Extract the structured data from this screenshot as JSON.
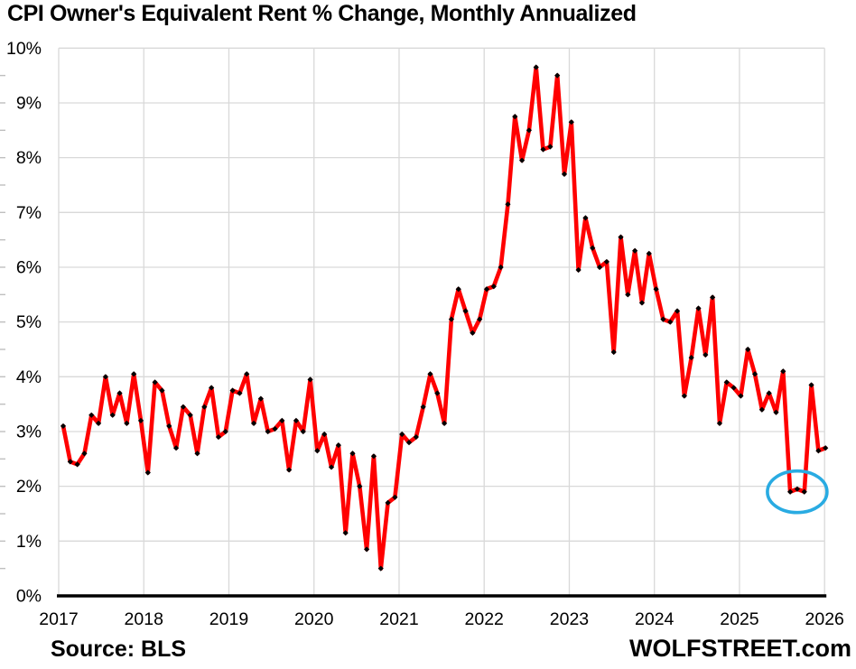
{
  "footer": {
    "source": "Source: BLS",
    "brand": "WOLFSTREET.com"
  },
  "chart_data": {
    "type": "line",
    "title": "CPI Owner's Equivalent Rent % Change, Monthly Annualized",
    "xlabel": "",
    "ylabel": "",
    "ylim": [
      0,
      10
    ],
    "y_ticks": [
      0,
      1,
      2,
      3,
      4,
      5,
      6,
      7,
      8,
      9,
      10
    ],
    "y_tick_suffix": "%",
    "y_minor_tick_step": 0.5,
    "x_tick_labels": [
      "2017",
      "2018",
      "2019",
      "2020",
      "2021",
      "2022",
      "2023",
      "2024",
      "2025",
      "2026"
    ],
    "grid": "on",
    "legend": "none",
    "background_color": "#ffffff",
    "text_color": "#000000",
    "grid_color": "#d9d9d9",
    "line_color": "#ff0000",
    "marker_color": "#000000",
    "series": [
      {
        "name": "Owner's equivalent rent, month-to-month % change annualized",
        "start": "2017-01",
        "step": "1 month",
        "end": "2026-01",
        "values": [
          3.1,
          2.45,
          2.4,
          2.6,
          3.3,
          3.15,
          4.0,
          3.3,
          3.7,
          3.15,
          4.05,
          3.2,
          2.25,
          3.9,
          3.75,
          3.1,
          2.7,
          3.45,
          3.3,
          2.6,
          3.45,
          3.8,
          2.9,
          3.0,
          3.75,
          3.7,
          4.05,
          3.15,
          3.6,
          3.0,
          3.05,
          3.2,
          2.3,
          3.2,
          3.0,
          3.95,
          2.65,
          2.95,
          2.35,
          2.75,
          1.15,
          2.6,
          2.0,
          0.85,
          2.55,
          0.5,
          1.7,
          1.8,
          2.95,
          2.8,
          2.9,
          3.45,
          4.05,
          3.7,
          3.15,
          5.05,
          5.6,
          5.2,
          4.8,
          5.05,
          5.6,
          5.65,
          6.0,
          7.15,
          8.75,
          7.95,
          8.5,
          9.65,
          8.15,
          8.2,
          9.5,
          7.7,
          8.65,
          5.95,
          6.9,
          6.35,
          6.0,
          6.1,
          4.45,
          6.55,
          5.5,
          6.3,
          5.35,
          6.25,
          5.6,
          5.05,
          5.0,
          5.2,
          3.65,
          4.35,
          5.25,
          4.4,
          5.45,
          3.15,
          3.9,
          3.8,
          3.65,
          4.5,
          4.05,
          3.4,
          3.7,
          3.35,
          4.1,
          1.9,
          1.95,
          1.9,
          3.85,
          2.65,
          2.7
        ]
      }
    ],
    "annotation": {
      "shape": "ellipse",
      "start_month": "2025-08",
      "end_month": "2025-10",
      "center_value": 1.9,
      "color": "#29abe2",
      "note": "circles the three ~1.9% low readings in late 2025"
    }
  }
}
